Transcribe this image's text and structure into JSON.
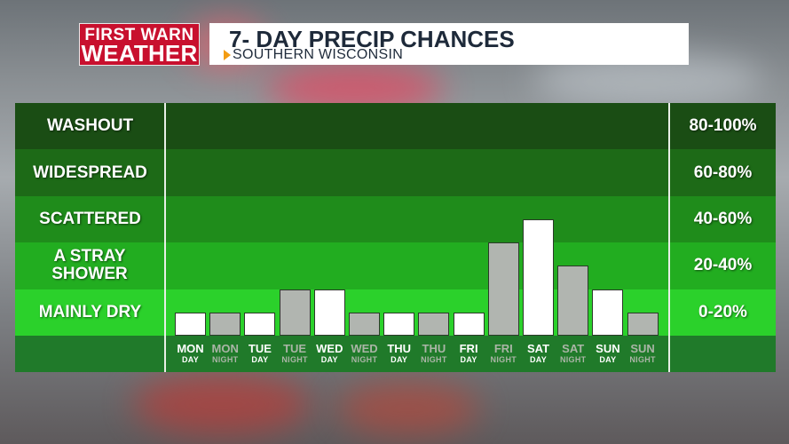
{
  "header": {
    "logo_line1": "FIRST WARN",
    "logo_line2": "WEATHER",
    "title": "7- DAY PRECIP CHANCES",
    "subtitle": "SOUTHERN WISCONSIN"
  },
  "colors": {
    "logo_red": "#c8102e",
    "band_washout": "#1a4d14",
    "band_widespread": "#1d6a17",
    "band_scattered": "#1f8c1b",
    "band_stray": "#22ad20",
    "band_dry": "#2bd12b",
    "axis_band": "#207a2a",
    "day_bar": "#ffffff",
    "night_bar": "#b1b5b0",
    "day_text": "#ffffff",
    "night_text": "#aab5a6"
  },
  "chart_data": {
    "type": "bar",
    "categories": [
      {
        "day": "MON",
        "period": "DAY"
      },
      {
        "day": "MON",
        "period": "NIGHT"
      },
      {
        "day": "TUE",
        "period": "DAY"
      },
      {
        "day": "TUE",
        "period": "NIGHT"
      },
      {
        "day": "WED",
        "period": "DAY"
      },
      {
        "day": "WED",
        "period": "NIGHT"
      },
      {
        "day": "THU",
        "period": "DAY"
      },
      {
        "day": "THU",
        "period": "NIGHT"
      },
      {
        "day": "FRI",
        "period": "DAY"
      },
      {
        "day": "FRI",
        "period": "NIGHT"
      },
      {
        "day": "SAT",
        "period": "DAY"
      },
      {
        "day": "SAT",
        "period": "NIGHT"
      },
      {
        "day": "SUN",
        "period": "DAY"
      },
      {
        "day": "SUN",
        "period": "NIGHT"
      }
    ],
    "values": [
      10,
      10,
      10,
      20,
      20,
      10,
      10,
      10,
      10,
      40,
      50,
      30,
      20,
      10
    ],
    "ylim": [
      0,
      100
    ],
    "bands": [
      {
        "label": "WASHOUT",
        "range": "80-100%",
        "from": 80,
        "to": 100
      },
      {
        "label": "WIDESPREAD",
        "range": "60-80%",
        "from": 60,
        "to": 80
      },
      {
        "label": "SCATTERED",
        "range": "40-60%",
        "from": 40,
        "to": 60
      },
      {
        "label": "A STRAY SHOWER",
        "range": "20-40%",
        "from": 20,
        "to": 40
      },
      {
        "label": "MAINLY DRY",
        "range": "0-20%",
        "from": 0,
        "to": 20
      }
    ]
  }
}
